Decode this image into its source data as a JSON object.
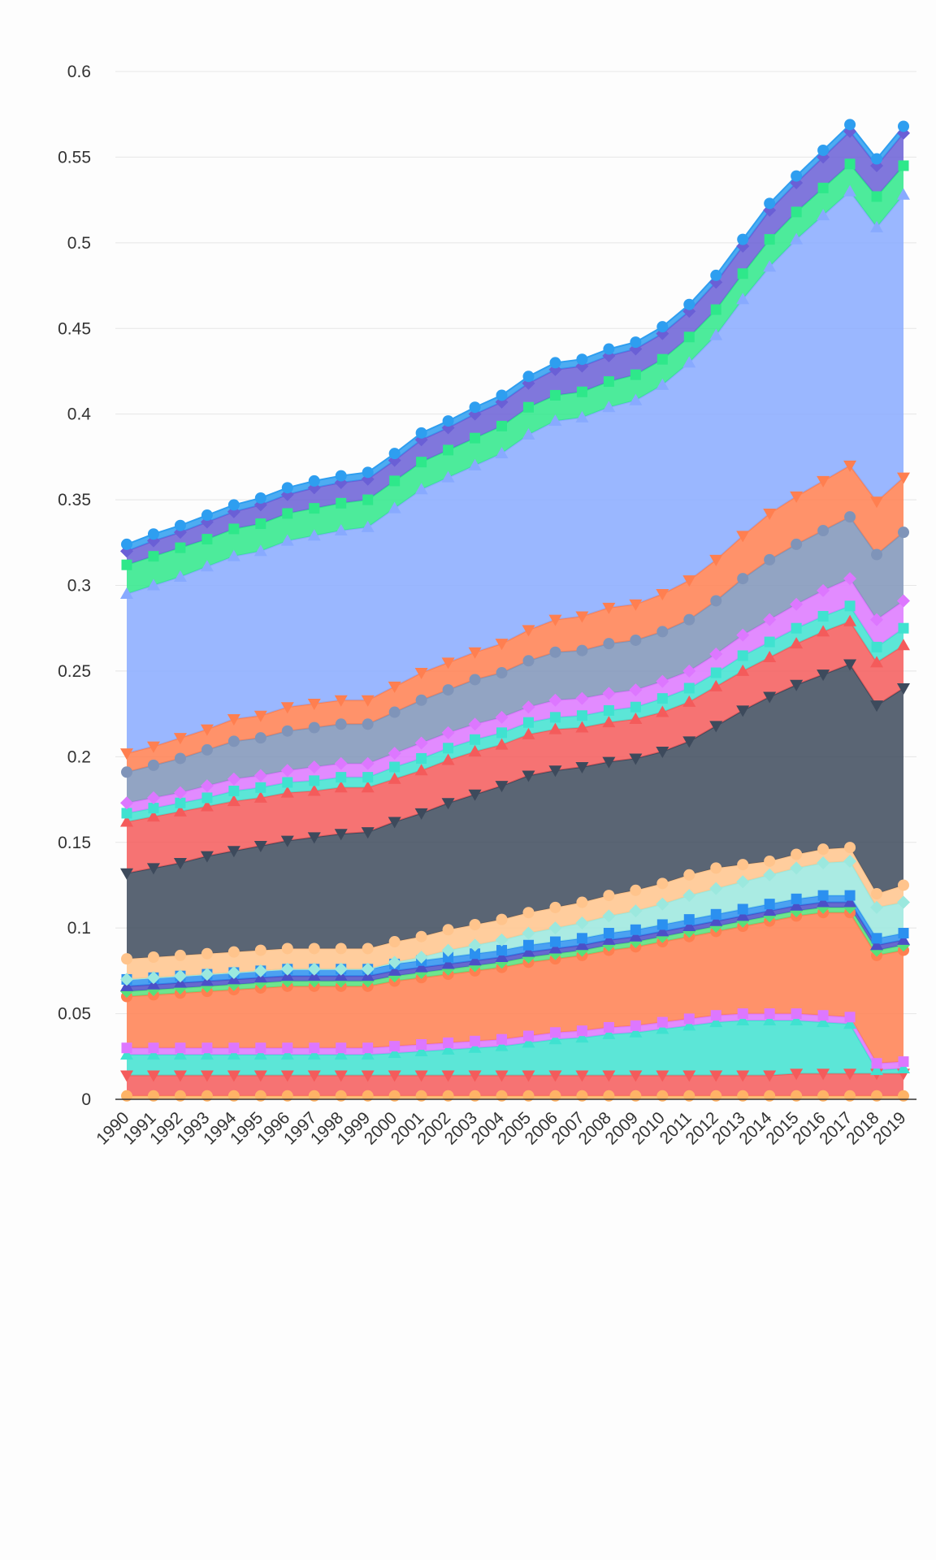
{
  "chart_data": {
    "type": "area",
    "stacked": true,
    "title": "",
    "xlabel": "",
    "ylabel": "",
    "ylim": [
      0,
      0.6
    ],
    "yticks": [
      "0",
      "0.05",
      "0.1",
      "0.15",
      "0.2",
      "0.25",
      "0.3",
      "0.35",
      "0.4",
      "0.45",
      "0.5",
      "0.55",
      "0.6"
    ],
    "grid": true,
    "legend": "none",
    "x": [
      "1990",
      "1991",
      "1992",
      "1993",
      "1994",
      "1995",
      "1996",
      "1997",
      "1998",
      "1999",
      "2000",
      "2001",
      "2002",
      "2003",
      "2004",
      "2005",
      "2006",
      "2007",
      "2008",
      "2009",
      "2010",
      "2011",
      "2012",
      "2013",
      "2014",
      "2015",
      "2016",
      "2017",
      "2018",
      "2019"
    ],
    "series": [
      {
        "color": "#ffb366",
        "marker": "circle",
        "values": [
          0.002,
          0.002,
          0.002,
          0.002,
          0.002,
          0.002,
          0.002,
          0.002,
          0.002,
          0.002,
          0.002,
          0.002,
          0.002,
          0.002,
          0.002,
          0.002,
          0.002,
          0.002,
          0.002,
          0.002,
          0.002,
          0.002,
          0.002,
          0.002,
          0.002,
          0.002,
          0.002,
          0.002,
          0.002,
          0.002
        ]
      },
      {
        "color": "#f45b5b",
        "marker": "triangle-down",
        "values": [
          0.012,
          0.012,
          0.012,
          0.012,
          0.012,
          0.012,
          0.012,
          0.012,
          0.012,
          0.012,
          0.012,
          0.012,
          0.012,
          0.012,
          0.012,
          0.012,
          0.012,
          0.012,
          0.012,
          0.012,
          0.012,
          0.012,
          0.012,
          0.012,
          0.012,
          0.013,
          0.013,
          0.013,
          0.013,
          0.013
        ]
      },
      {
        "color": "#3fe2d0",
        "marker": "triangle-up",
        "values": [
          0.012,
          0.012,
          0.012,
          0.012,
          0.012,
          0.012,
          0.012,
          0.012,
          0.012,
          0.012,
          0.013,
          0.014,
          0.015,
          0.016,
          0.017,
          0.019,
          0.021,
          0.022,
          0.024,
          0.025,
          0.027,
          0.029,
          0.031,
          0.032,
          0.032,
          0.031,
          0.03,
          0.029,
          0.002,
          0.003
        ]
      },
      {
        "color": "#dd77ff",
        "marker": "square",
        "values": [
          0.004,
          0.004,
          0.004,
          0.004,
          0.004,
          0.004,
          0.004,
          0.004,
          0.004,
          0.004,
          0.004,
          0.004,
          0.004,
          0.004,
          0.004,
          0.004,
          0.004,
          0.004,
          0.004,
          0.004,
          0.004,
          0.004,
          0.004,
          0.004,
          0.004,
          0.004,
          0.004,
          0.004,
          0.004,
          0.004
        ]
      },
      {
        "color": "#ff7f50",
        "marker": "circle",
        "values": [
          0.03,
          0.031,
          0.032,
          0.033,
          0.034,
          0.035,
          0.036,
          0.036,
          0.036,
          0.036,
          0.038,
          0.039,
          0.04,
          0.041,
          0.042,
          0.043,
          0.043,
          0.044,
          0.045,
          0.046,
          0.047,
          0.048,
          0.049,
          0.051,
          0.054,
          0.057,
          0.06,
          0.061,
          0.063,
          0.065
        ]
      },
      {
        "color": "#55e07a",
        "marker": "diamond",
        "values": [
          0.003,
          0.003,
          0.003,
          0.003,
          0.003,
          0.003,
          0.003,
          0.003,
          0.003,
          0.003,
          0.003,
          0.003,
          0.003,
          0.003,
          0.003,
          0.003,
          0.003,
          0.003,
          0.003,
          0.003,
          0.003,
          0.003,
          0.003,
          0.003,
          0.003,
          0.003,
          0.003,
          0.003,
          0.003,
          0.003
        ]
      },
      {
        "color": "#4b4fc7",
        "marker": "triangle-up",
        "values": [
          0.003,
          0.003,
          0.003,
          0.003,
          0.003,
          0.003,
          0.003,
          0.003,
          0.003,
          0.003,
          0.003,
          0.003,
          0.003,
          0.003,
          0.003,
          0.003,
          0.003,
          0.003,
          0.003,
          0.003,
          0.003,
          0.003,
          0.003,
          0.003,
          0.003,
          0.003,
          0.003,
          0.003,
          0.003,
          0.003
        ]
      },
      {
        "color": "#2b90f0",
        "marker": "square",
        "values": [
          0.004,
          0.004,
          0.004,
          0.004,
          0.004,
          0.004,
          0.004,
          0.004,
          0.004,
          0.004,
          0.004,
          0.004,
          0.004,
          0.004,
          0.004,
          0.004,
          0.004,
          0.004,
          0.004,
          0.004,
          0.004,
          0.004,
          0.004,
          0.004,
          0.004,
          0.004,
          0.004,
          0.004,
          0.004,
          0.004
        ]
      },
      {
        "color": "#9be8de",
        "marker": "diamond",
        "values": [
          0.0,
          0.0,
          0.0,
          0.0,
          0.0,
          0.0,
          0.0,
          0.0,
          0.0,
          0.0,
          0.001,
          0.002,
          0.004,
          0.005,
          0.006,
          0.007,
          0.008,
          0.009,
          0.01,
          0.011,
          0.012,
          0.014,
          0.015,
          0.016,
          0.017,
          0.018,
          0.019,
          0.02,
          0.018,
          0.018
        ]
      },
      {
        "color": "#ffc48c",
        "marker": "circle",
        "values": [
          0.012,
          0.012,
          0.012,
          0.012,
          0.012,
          0.012,
          0.012,
          0.012,
          0.012,
          0.012,
          0.012,
          0.012,
          0.012,
          0.012,
          0.012,
          0.012,
          0.012,
          0.012,
          0.012,
          0.012,
          0.012,
          0.012,
          0.012,
          0.01,
          0.008,
          0.008,
          0.008,
          0.008,
          0.008,
          0.01
        ]
      },
      {
        "color": "#3d4a5c",
        "marker": "triangle-down",
        "values": [
          0.05,
          0.052,
          0.054,
          0.057,
          0.059,
          0.061,
          0.063,
          0.065,
          0.067,
          0.068,
          0.07,
          0.072,
          0.074,
          0.076,
          0.078,
          0.08,
          0.08,
          0.079,
          0.078,
          0.077,
          0.077,
          0.078,
          0.083,
          0.09,
          0.096,
          0.099,
          0.102,
          0.107,
          0.11,
          0.115
        ]
      },
      {
        "color": "#f45b5b",
        "marker": "triangle-up",
        "values": [
          0.03,
          0.03,
          0.03,
          0.029,
          0.029,
          0.028,
          0.028,
          0.027,
          0.027,
          0.026,
          0.025,
          0.025,
          0.025,
          0.025,
          0.024,
          0.024,
          0.024,
          0.023,
          0.023,
          0.023,
          0.023,
          0.023,
          0.023,
          0.023,
          0.023,
          0.024,
          0.025,
          0.025,
          0.025,
          0.025
        ]
      },
      {
        "color": "#3fe2d0",
        "marker": "square",
        "values": [
          0.005,
          0.005,
          0.005,
          0.005,
          0.006,
          0.006,
          0.006,
          0.006,
          0.006,
          0.006,
          0.007,
          0.007,
          0.007,
          0.007,
          0.007,
          0.007,
          0.007,
          0.007,
          0.007,
          0.007,
          0.008,
          0.008,
          0.008,
          0.009,
          0.009,
          0.009,
          0.009,
          0.009,
          0.009,
          0.01
        ]
      },
      {
        "color": "#dd77ff",
        "marker": "diamond",
        "values": [
          0.006,
          0.006,
          0.006,
          0.007,
          0.007,
          0.007,
          0.007,
          0.008,
          0.008,
          0.008,
          0.008,
          0.009,
          0.009,
          0.009,
          0.009,
          0.009,
          0.01,
          0.01,
          0.01,
          0.01,
          0.01,
          0.01,
          0.011,
          0.012,
          0.013,
          0.014,
          0.015,
          0.016,
          0.016,
          0.016
        ]
      },
      {
        "color": "#7f94b9",
        "marker": "circle",
        "values": [
          0.018,
          0.019,
          0.02,
          0.021,
          0.022,
          0.022,
          0.023,
          0.023,
          0.023,
          0.023,
          0.024,
          0.025,
          0.025,
          0.026,
          0.026,
          0.027,
          0.028,
          0.028,
          0.029,
          0.029,
          0.029,
          0.03,
          0.031,
          0.033,
          0.035,
          0.035,
          0.035,
          0.036,
          0.038,
          0.04
        ]
      },
      {
        "color": "#ff7f50",
        "marker": "triangle-down",
        "values": [
          0.011,
          0.011,
          0.012,
          0.012,
          0.013,
          0.013,
          0.014,
          0.014,
          0.014,
          0.014,
          0.015,
          0.016,
          0.016,
          0.016,
          0.017,
          0.018,
          0.019,
          0.02,
          0.021,
          0.021,
          0.022,
          0.023,
          0.024,
          0.025,
          0.027,
          0.028,
          0.029,
          0.03,
          0.031,
          0.032
        ]
      },
      {
        "color": "#88aaff",
        "marker": "triangle-up",
        "values": [
          0.093,
          0.094,
          0.094,
          0.095,
          0.095,
          0.096,
          0.097,
          0.098,
          0.099,
          0.101,
          0.104,
          0.107,
          0.108,
          0.109,
          0.111,
          0.114,
          0.116,
          0.116,
          0.117,
          0.119,
          0.122,
          0.127,
          0.131,
          0.138,
          0.144,
          0.15,
          0.155,
          0.16,
          0.16,
          0.165
        ]
      },
      {
        "color": "#2ee88a",
        "marker": "square",
        "values": [
          0.017,
          0.017,
          0.017,
          0.016,
          0.016,
          0.016,
          0.016,
          0.016,
          0.016,
          0.016,
          0.016,
          0.016,
          0.016,
          0.016,
          0.016,
          0.016,
          0.015,
          0.015,
          0.015,
          0.015,
          0.015,
          0.015,
          0.015,
          0.015,
          0.016,
          0.016,
          0.016,
          0.016,
          0.018,
          0.017
        ]
      },
      {
        "color": "#6a5fd6",
        "marker": "diamond",
        "values": [
          0.008,
          0.009,
          0.009,
          0.01,
          0.01,
          0.011,
          0.011,
          0.012,
          0.012,
          0.012,
          0.012,
          0.013,
          0.013,
          0.014,
          0.014,
          0.014,
          0.015,
          0.015,
          0.015,
          0.015,
          0.015,
          0.015,
          0.016,
          0.016,
          0.017,
          0.017,
          0.018,
          0.019,
          0.018,
          0.019
        ]
      },
      {
        "color": "#2e9ef0",
        "marker": "circle",
        "values": [
          0.004,
          0.004,
          0.004,
          0.004,
          0.004,
          0.004,
          0.004,
          0.004,
          0.004,
          0.004,
          0.004,
          0.004,
          0.004,
          0.004,
          0.004,
          0.004,
          0.004,
          0.004,
          0.004,
          0.004,
          0.004,
          0.004,
          0.004,
          0.004,
          0.004,
          0.004,
          0.004,
          0.004,
          0.004,
          0.004
        ]
      }
    ]
  }
}
